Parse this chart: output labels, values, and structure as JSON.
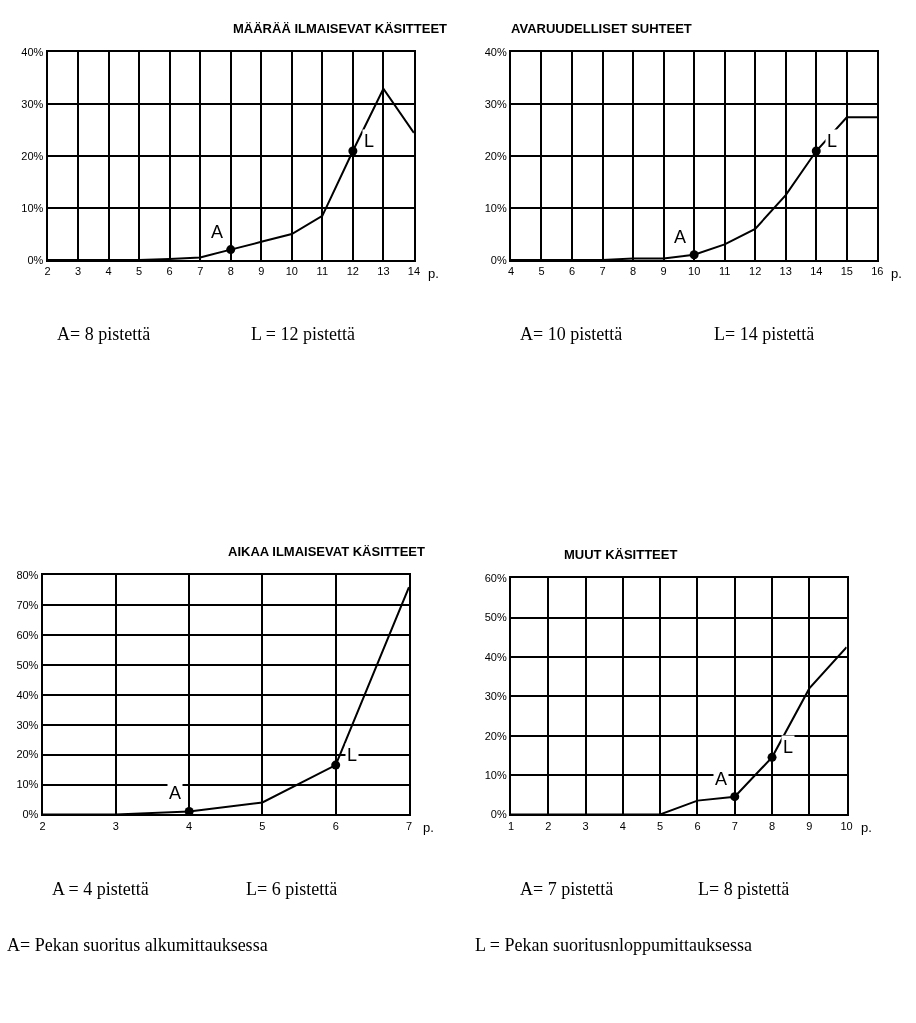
{
  "chart_data": [
    {
      "type": "line",
      "title": "MÄÄRÄÄ ILMAISEVAT KÄSITTEET",
      "xlabel": "p.",
      "x": [
        2,
        3,
        4,
        5,
        6,
        7,
        8,
        9,
        10,
        11,
        12,
        13,
        14
      ],
      "series": [
        {
          "color": "#000000",
          "values": [
            0,
            0,
            0,
            0,
            0.2,
            0.5,
            2,
            3.5,
            5,
            8.5,
            21,
            33,
            24.5
          ]
        },
        {
          "type": "scatter",
          "marker": "circle",
          "color": "#000000",
          "x": [
            8,
            12
          ],
          "values": [
            2,
            21
          ]
        }
      ],
      "xlim": [
        2,
        14
      ],
      "xticks": [
        2,
        3,
        4,
        5,
        6,
        7,
        8,
        9,
        10,
        11,
        12,
        13,
        14
      ],
      "ylim": [
        0,
        40
      ],
      "yticks": [
        {
          "value": 0,
          "label": "0%"
        },
        {
          "value": 10,
          "label": "10%"
        },
        {
          "value": 20,
          "label": "20%"
        },
        {
          "value": 30,
          "label": "30%"
        },
        {
          "value": 40,
          "label": "40%"
        }
      ],
      "grid": true,
      "marker": "none",
      "annotations": [
        {
          "text": "A",
          "x": 8,
          "y": 2
        },
        {
          "text": "L",
          "x": 12,
          "y": 21
        },
        "A= 8 pistettä",
        "L = 12 pistettä"
      ]
    },
    {
      "type": "line",
      "title": "AVARUUDELLISET SUHTEET",
      "xlabel": "p.",
      "x": [
        4,
        5,
        6,
        7,
        8,
        9,
        10,
        11,
        12,
        13,
        14,
        15,
        16
      ],
      "series": [
        {
          "color": "#000000",
          "values": [
            0,
            0,
            0,
            0,
            0.3,
            0.3,
            1,
            3,
            6,
            12.5,
            21,
            27.5,
            27.5
          ]
        },
        {
          "type": "scatter",
          "marker": "circle",
          "color": "#000000",
          "x": [
            10,
            14
          ],
          "values": [
            1,
            21
          ]
        }
      ],
      "xlim": [
        4,
        16
      ],
      "xticks": [
        4,
        5,
        6,
        7,
        8,
        9,
        10,
        11,
        12,
        13,
        14,
        15,
        16
      ],
      "ylim": [
        0,
        40
      ],
      "yticks": [
        {
          "value": 0,
          "label": "0%"
        },
        {
          "value": 10,
          "label": "10%"
        },
        {
          "value": 20,
          "label": "20%"
        },
        {
          "value": 30,
          "label": "30%"
        },
        {
          "value": 40,
          "label": "40%"
        }
      ],
      "grid": true,
      "marker": "none",
      "annotations": [
        {
          "text": "A",
          "x": 10,
          "y": 1
        },
        {
          "text": "L",
          "x": 14,
          "y": 21
        },
        "A= 10 pistettä",
        "L= 14 pistettä"
      ]
    },
    {
      "type": "line",
      "title": "AIKAA ILMAISEVAT KÄSITTEET",
      "xlabel": "p.",
      "x": [
        2,
        3,
        4,
        5,
        6,
        7
      ],
      "series": [
        {
          "color": "#000000",
          "values": [
            0,
            0,
            1,
            4,
            16.5,
            76
          ]
        },
        {
          "type": "scatter",
          "marker": "circle",
          "color": "#000000",
          "x": [
            4,
            6
          ],
          "values": [
            1,
            16.5
          ]
        }
      ],
      "xlim": [
        2,
        7
      ],
      "xticks": [
        2,
        3,
        4,
        5,
        6,
        7
      ],
      "ylim": [
        0,
        80
      ],
      "yticks": [
        {
          "value": 0,
          "label": "0%"
        },
        {
          "value": 10,
          "label": "10%"
        },
        {
          "value": 20,
          "label": "20%"
        },
        {
          "value": 30,
          "label": "30%"
        },
        {
          "value": 40,
          "label": "40%"
        },
        {
          "value": 50,
          "label": "50%"
        },
        {
          "value": 60,
          "label": "60%"
        },
        {
          "value": 70,
          "label": "70%"
        },
        {
          "value": 80,
          "label": "80%"
        }
      ],
      "grid": true,
      "marker": "none",
      "annotations": [
        {
          "text": "A",
          "x": 4,
          "y": 1
        },
        {
          "text": "L",
          "x": 6,
          "y": 16.5
        },
        "A = 4 pistettä",
        "L= 6 pistettä",
        "A= Pekan suoritus alkumittauksessa"
      ]
    },
    {
      "type": "line",
      "title": "MUUT KÄSITTEET",
      "xlabel": "p.",
      "x": [
        1,
        2,
        3,
        4,
        5,
        6,
        7,
        8,
        9,
        10
      ],
      "series": [
        {
          "color": "#000000",
          "values": [
            0,
            0,
            0,
            0,
            0,
            3.5,
            4.5,
            14.5,
            32,
            42.5
          ]
        },
        {
          "type": "scatter",
          "marker": "circle",
          "color": "#000000",
          "x": [
            7,
            8
          ],
          "values": [
            4.5,
            14.5
          ]
        }
      ],
      "xlim": [
        1,
        10
      ],
      "xticks": [
        1,
        2,
        3,
        4,
        5,
        6,
        7,
        8,
        9,
        10
      ],
      "ylim": [
        0,
        60
      ],
      "yticks": [
        {
          "value": 0,
          "label": "0%"
        },
        {
          "value": 10,
          "label": "10%"
        },
        {
          "value": 20,
          "label": "20%"
        },
        {
          "value": 30,
          "label": "30%"
        },
        {
          "value": 40,
          "label": "40%"
        },
        {
          "value": 50,
          "label": "50%"
        },
        {
          "value": 60,
          "label": "60%"
        }
      ],
      "grid": true,
      "marker": "none",
      "annotations": [
        {
          "text": "A",
          "x": 7,
          "y": 4.5
        },
        {
          "text": "L",
          "x": 8,
          "y": 14.5
        },
        "A= 7 pistettä",
        "L= 8 pistettä",
        "L = Pekan suoritusnloppumittauksessa"
      ]
    }
  ]
}
